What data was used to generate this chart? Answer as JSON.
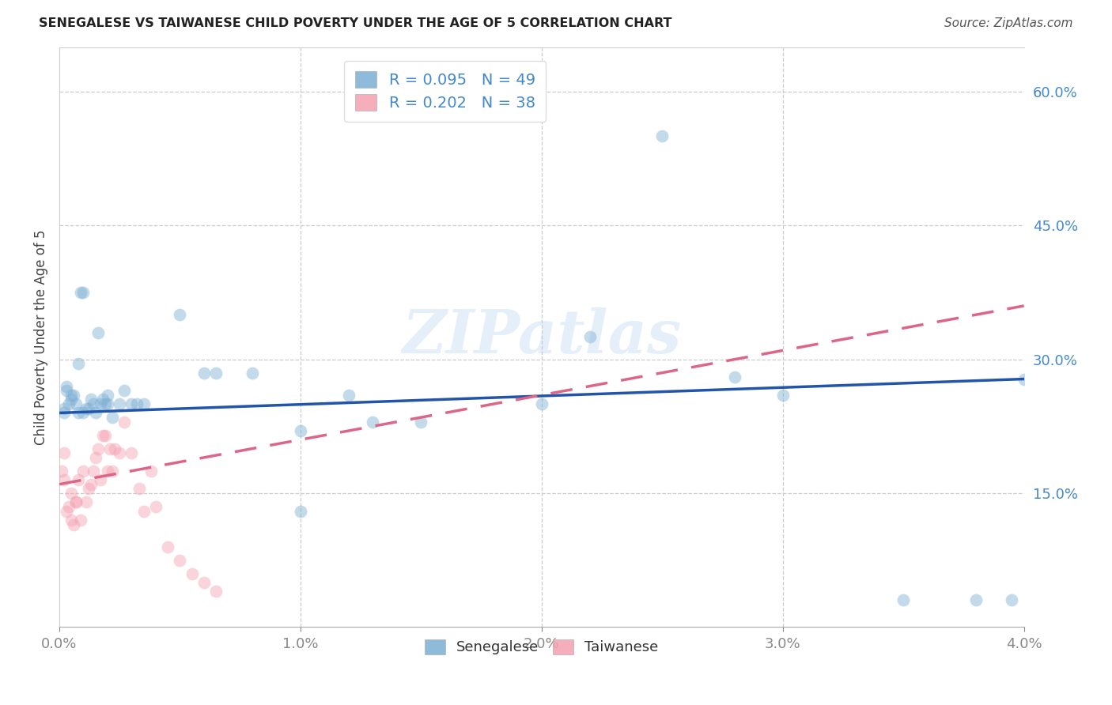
{
  "title": "SENEGALESE VS TAIWANESE CHILD POVERTY UNDER THE AGE OF 5 CORRELATION CHART",
  "source": "Source: ZipAtlas.com",
  "ylabel": "Child Poverty Under the Age of 5",
  "xlim": [
    0.0,
    0.04
  ],
  "ylim": [
    0.0,
    0.65
  ],
  "yticks": [
    0.15,
    0.3,
    0.45,
    0.6
  ],
  "ytick_labels": [
    "15.0%",
    "30.0%",
    "45.0%",
    "60.0%"
  ],
  "xtick_positions": [
    0.0,
    0.01,
    0.02,
    0.03,
    0.04
  ],
  "xtick_labels": [
    "0.0%",
    "1.0%",
    "2.0%",
    "3.0%",
    "4.0%"
  ],
  "legend_entry1": "R = 0.095   N = 49",
  "legend_entry2": "R = 0.202   N = 38",
  "color_senegalese": "#7bafd4",
  "color_taiwanese": "#f4a0b0",
  "color_senegalese_line": "#2255aa",
  "color_taiwanese_line": "#dd6688",
  "background_color": "#ffffff",
  "senegalese_x": [
    0.0002,
    0.0002,
    0.0003,
    0.0003,
    0.0004,
    0.0005,
    0.0005,
    0.0006,
    0.0007,
    0.0008,
    0.0008,
    0.0009,
    0.001,
    0.001,
    0.0011,
    0.0012,
    0.0013,
    0.0014,
    0.0015,
    0.0016,
    0.0017,
    0.0018,
    0.0019,
    0.002,
    0.002,
    0.0022,
    0.0025,
    0.0027,
    0.003,
    0.0032,
    0.0035,
    0.005,
    0.006,
    0.0065,
    0.008,
    0.01,
    0.01,
    0.012,
    0.013,
    0.015,
    0.02,
    0.022,
    0.025,
    0.028,
    0.03,
    0.035,
    0.038,
    0.0395,
    0.04
  ],
  "senegalese_y": [
    0.24,
    0.245,
    0.27,
    0.265,
    0.25,
    0.255,
    0.26,
    0.26,
    0.25,
    0.295,
    0.24,
    0.375,
    0.375,
    0.24,
    0.245,
    0.245,
    0.255,
    0.25,
    0.24,
    0.33,
    0.25,
    0.255,
    0.25,
    0.25,
    0.26,
    0.235,
    0.25,
    0.265,
    0.25,
    0.25,
    0.25,
    0.35,
    0.285,
    0.285,
    0.285,
    0.13,
    0.22,
    0.26,
    0.23,
    0.23,
    0.25,
    0.325,
    0.55,
    0.28,
    0.26,
    0.03,
    0.03,
    0.03,
    0.278
  ],
  "taiwanese_x": [
    0.0001,
    0.0002,
    0.0002,
    0.0003,
    0.0004,
    0.0005,
    0.0005,
    0.0006,
    0.0007,
    0.0007,
    0.0008,
    0.0009,
    0.001,
    0.0011,
    0.0012,
    0.0013,
    0.0014,
    0.0015,
    0.0016,
    0.0017,
    0.0018,
    0.0019,
    0.002,
    0.0021,
    0.0022,
    0.0023,
    0.0025,
    0.0027,
    0.003,
    0.0033,
    0.0035,
    0.0038,
    0.004,
    0.0045,
    0.005,
    0.0055,
    0.006,
    0.0065
  ],
  "taiwanese_y": [
    0.175,
    0.195,
    0.165,
    0.13,
    0.135,
    0.12,
    0.15,
    0.115,
    0.14,
    0.14,
    0.165,
    0.12,
    0.175,
    0.14,
    0.155,
    0.16,
    0.175,
    0.19,
    0.2,
    0.165,
    0.215,
    0.215,
    0.175,
    0.2,
    0.175,
    0.2,
    0.195,
    0.23,
    0.195,
    0.155,
    0.13,
    0.175,
    0.135,
    0.09,
    0.075,
    0.06,
    0.05,
    0.04
  ],
  "sen_line_x0": 0.0,
  "sen_line_y0": 0.24,
  "sen_line_x1": 0.04,
  "sen_line_y1": 0.278,
  "tai_line_x0": 0.0,
  "tai_line_y0": 0.16,
  "tai_line_x1": 0.04,
  "tai_line_y1": 0.36,
  "watermark": "ZIPatlas",
  "marker_size": 130,
  "marker_alpha": 0.45,
  "line_width": 2.5
}
